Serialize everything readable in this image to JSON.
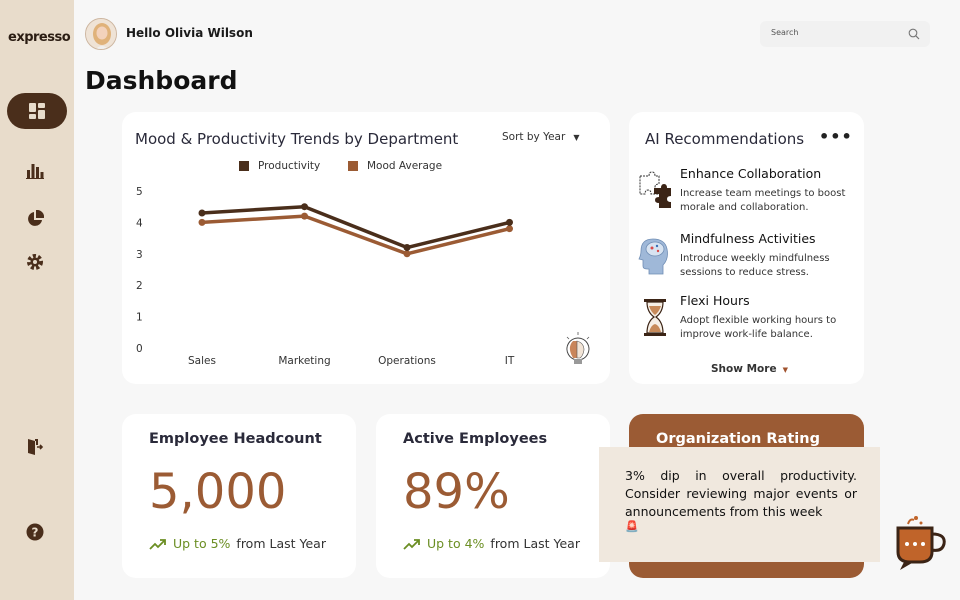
{
  "app": {
    "logo": "expresso"
  },
  "header": {
    "greeting": "Hello Olivia Wilson",
    "search_placeholder": "Search"
  },
  "page": {
    "title": "Dashboard"
  },
  "sidebar": {
    "items": [
      {
        "name": "dashboard",
        "icon": "dashboard-icon",
        "active": true
      },
      {
        "name": "analytics",
        "icon": "bar-chart-icon"
      },
      {
        "name": "reports",
        "icon": "pie-chart-icon"
      },
      {
        "name": "settings",
        "icon": "gear-icon"
      },
      {
        "name": "logout",
        "icon": "logout-icon"
      },
      {
        "name": "help",
        "icon": "help-icon"
      }
    ]
  },
  "trend_chart": {
    "sort_label": "Sort by Year",
    "chart_data": {
      "type": "line",
      "title": "Mood & Productivity Trends by Department",
      "categories": [
        "Sales",
        "Marketing",
        "Operations",
        "IT"
      ],
      "yticks": [
        "0",
        "1",
        "2",
        "3",
        "4",
        "5"
      ],
      "ylim": [
        0,
        5
      ],
      "legend_position": "top",
      "series": [
        {
          "name": "Productivity",
          "color": "#4a2e1b",
          "values": [
            4.3,
            4.5,
            3.2,
            4.0
          ]
        },
        {
          "name": "Mood Average",
          "color": "#9b5b34",
          "values": [
            4.0,
            4.2,
            3.0,
            3.8
          ]
        }
      ]
    }
  },
  "ai": {
    "title": "AI Recommendations",
    "show_more": "Show More",
    "items": [
      {
        "title": "Enhance  Collaboration",
        "body": "Increase team meetings to boost morale and collaboration.",
        "icon": "puzzle-icon"
      },
      {
        "title": "Mindfulness Activities",
        "body": "Introduce weekly mindfulness sessions to reduce stress.",
        "icon": "brain-icon"
      },
      {
        "title": "Flexi Hours",
        "body": "Adopt flexible working hours to improve work-life balance.",
        "icon": "hourglass-icon"
      }
    ]
  },
  "stats": [
    {
      "title": "Employee Headcount",
      "value": "5,000",
      "trend_up": "Up to 5%",
      "trend_rest": "from Last Year"
    },
    {
      "title": "Active Employees",
      "value": "89%",
      "trend_up": "Up to 4%",
      "trend_rest": "from Last Year"
    }
  ],
  "rating": {
    "title": "Organization Rating"
  },
  "alert": {
    "text": "3% dip in overall productivity. Consider reviewing major events or announcements from this week",
    "icon": "siren-icon"
  }
}
